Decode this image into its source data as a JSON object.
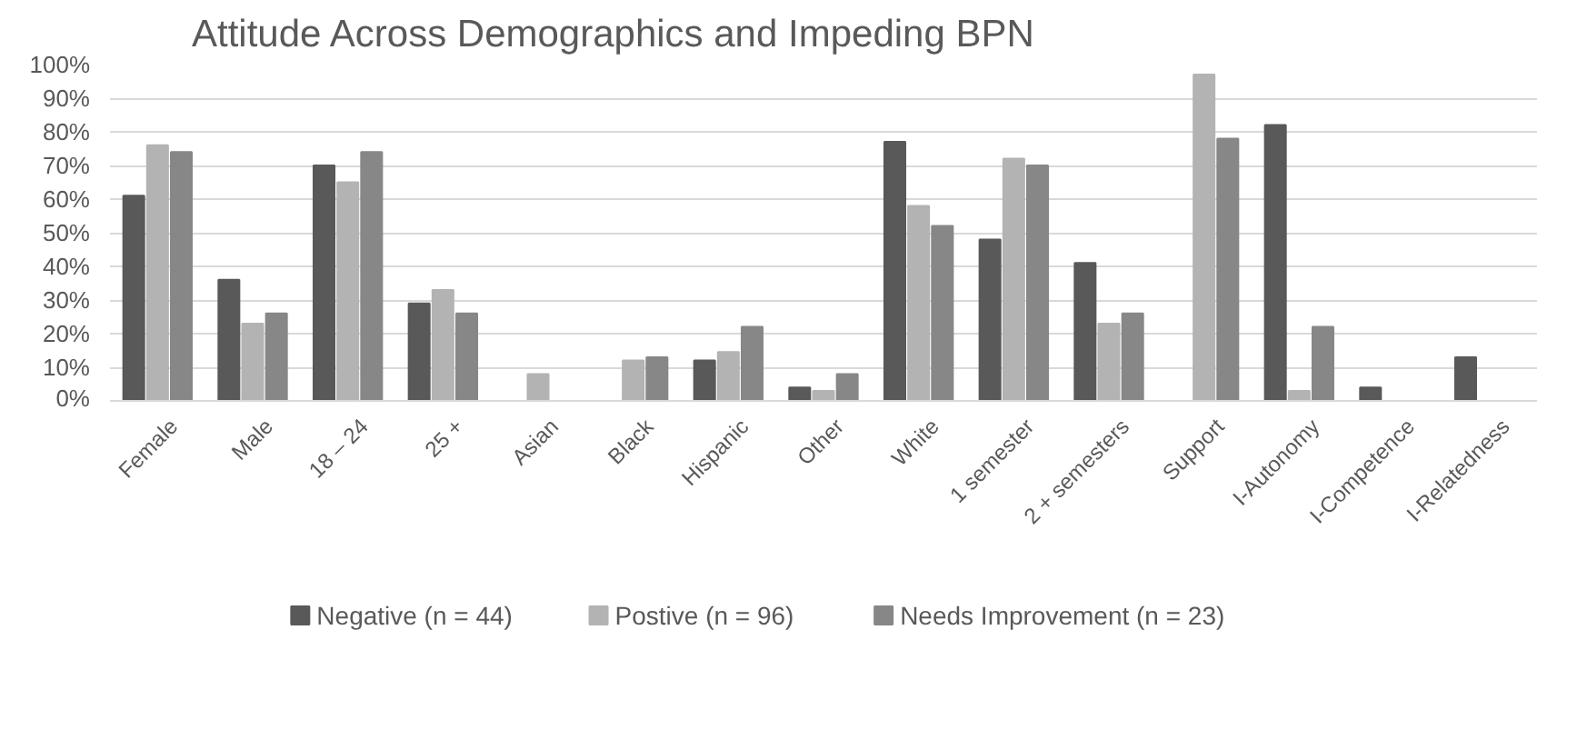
{
  "chart_data": {
    "type": "bar",
    "title": "Attitude Across Demographics and Impeding BPN",
    "categories": [
      "Female",
      "Male",
      "18 – 24",
      "25 +",
      "Asian",
      "Black",
      "Hispanic",
      "Other",
      "White",
      "1 semester",
      "2 + semesters",
      "Support",
      "I-Autonomy",
      "I-Competence",
      "I-Relatedness"
    ],
    "series": [
      {
        "name": "Negative (n = 44)",
        "color": "#595959",
        "values": [
          61,
          36,
          70,
          29,
          null,
          null,
          12,
          4,
          77,
          48,
          41,
          null,
          82,
          4,
          13
        ]
      },
      {
        "name": "Postive (n = 96)",
        "color": "#b3b3b3",
        "values": [
          76,
          23,
          65,
          33,
          8,
          12,
          14.5,
          3,
          58,
          72,
          23,
          97,
          3,
          null,
          null
        ]
      },
      {
        "name": "Needs Improvement (n = 23)",
        "color": "#878787",
        "values": [
          74,
          26,
          74,
          26,
          null,
          13,
          22,
          8,
          52,
          70,
          26,
          78,
          22,
          null,
          null
        ]
      }
    ],
    "ylim": [
      0,
      100
    ],
    "yticks": [
      {
        "value": 0,
        "label": "0%"
      },
      {
        "value": 10,
        "label": "10%"
      },
      {
        "value": 20,
        "label": "20%"
      },
      {
        "value": 30,
        "label": "30%"
      },
      {
        "value": 40,
        "label": "40%"
      },
      {
        "value": 50,
        "label": "50%"
      },
      {
        "value": 60,
        "label": "60%"
      },
      {
        "value": 70,
        "label": "70%"
      },
      {
        "value": 80,
        "label": "80%"
      },
      {
        "value": 90,
        "label": "90%"
      },
      {
        "value": 100,
        "label": "100%"
      }
    ],
    "grid": "y",
    "legend": "bottom"
  }
}
